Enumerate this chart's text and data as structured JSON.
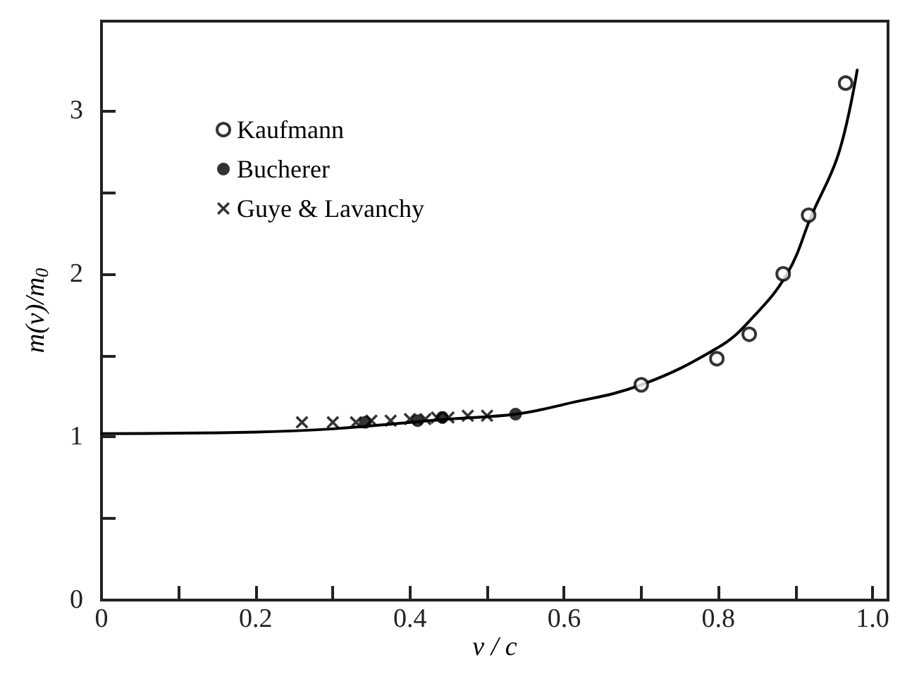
{
  "chart_data": {
    "type": "scatter",
    "xlabel": "v / c",
    "ylabel": "m(v)/m$_{0}$",
    "xlim": [
      0,
      1.02
    ],
    "ylim": [
      0,
      3.55
    ],
    "xticks": [
      0,
      {
        "value": 0.1,
        "label": null
      },
      0.2,
      {
        "value": 0.3,
        "label": null
      },
      0.4,
      {
        "value": 0.5,
        "label": null
      },
      0.6,
      {
        "value": 0.7,
        "label": null
      },
      0.8,
      {
        "value": 0.9,
        "label": null
      },
      {
        "value": 1,
        "label": "1.0"
      }
    ],
    "yticks": [
      0,
      {
        "value": 0.5,
        "label": null
      },
      1,
      {
        "value": 1.5,
        "label": null
      },
      2,
      {
        "value": 2.5,
        "label": null
      },
      3
    ],
    "grid": false,
    "legend": "top left",
    "series": [
      {
        "type": "line",
        "color": "#000000",
        "marker": "none",
        "line_style": "solid",
        "x": [
          0,
          0.2,
          0.3,
          0.45,
          0.537,
          0.6,
          0.7,
          0.8,
          0.84,
          0.889,
          0.921,
          0.956,
          0.98
        ],
        "values": [
          1.02,
          1.03,
          1.05,
          1.11,
          1.14,
          1.2,
          1.32,
          1.55,
          1.71,
          2.0,
          2.36,
          2.74,
          3.25
        ]
      },
      {
        "name": "Kaufmann",
        "color": "#000000",
        "marker": "circle",
        "x": [
          0.7,
          0.798,
          0.84,
          0.884,
          0.917,
          0.965
        ],
        "values": [
          1.32,
          1.48,
          1.63,
          2.0,
          2.36,
          3.17
        ]
      },
      {
        "name": "Bucherer",
        "color": "#000000",
        "marker": "circle",
        "x": [
          0.342,
          0.41,
          0.442,
          0.537
        ],
        "values": [
          1.09,
          1.1,
          1.12,
          1.14
        ]
      },
      {
        "name": "Guye & Lavanchy",
        "color": "#000000",
        "marker": "cross",
        "x": [
          0.26,
          0.3,
          0.33,
          0.35,
          0.375,
          0.4,
          0.42,
          0.435,
          0.45,
          0.475,
          0.5
        ],
        "values": [
          1.09,
          1.09,
          1.09,
          1.1,
          1.1,
          1.11,
          1.11,
          1.12,
          1.12,
          1.13,
          1.13
        ]
      }
    ]
  }
}
